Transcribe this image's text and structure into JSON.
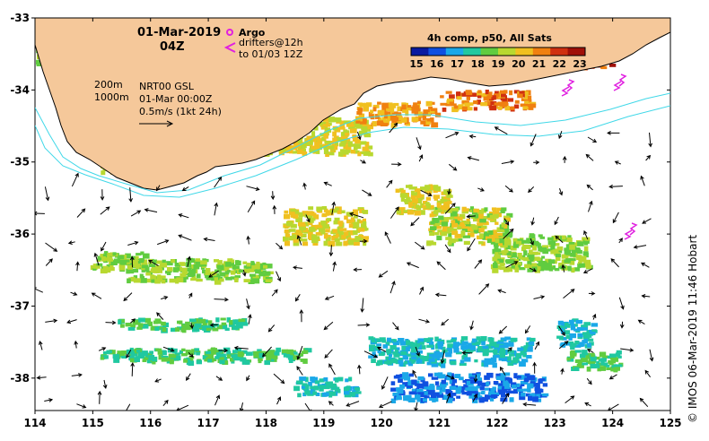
{
  "header": {
    "date": "01-Mar-2019",
    "time": "04Z"
  },
  "legend_argo": {
    "argo_label": "Argo",
    "drifters_label": "drifters@12h",
    "drifters_range": "to 01/03 12Z"
  },
  "colorbar": {
    "title": "4h comp, p50, All Sats",
    "ticks": [
      "15",
      "16",
      "17",
      "18",
      "19",
      "20",
      "21",
      "22",
      "23"
    ],
    "colors": [
      "#0a1aa0",
      "#1050e0",
      "#1aa8e8",
      "#20c8a0",
      "#60cc40",
      "#b8d830",
      "#f0c020",
      "#f08010",
      "#d03010",
      "#a01008"
    ]
  },
  "info": {
    "contour_200": "200m",
    "contour_1000": "1000m",
    "product": "NRT00 GSL",
    "analysis_time": "01-Mar 00:00Z",
    "vector_scale": "0.5m/s (1kt 24h)"
  },
  "axes": {
    "x_ticks": [
      "114",
      "115",
      "116",
      "117",
      "118",
      "119",
      "120",
      "121",
      "122",
      "123",
      "124",
      "125"
    ],
    "y_ticks": [
      "-33",
      "-34",
      "-35",
      "-36",
      "-37",
      "-38"
    ]
  },
  "credit": "© IMOS 06-Mar-2019 11:46 Hobart",
  "map_colors": {
    "land": "#f5c89a",
    "contour": "#40d8e8",
    "drifter": "#e020e0",
    "vector": "#000000"
  }
}
